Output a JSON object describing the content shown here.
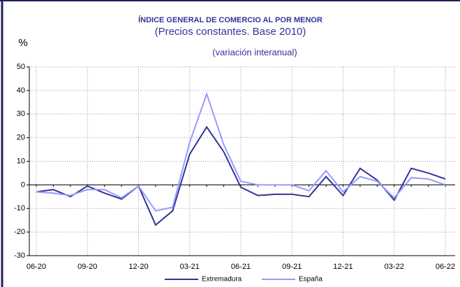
{
  "chart_data": {
    "type": "line",
    "title": "ÍNDICE GENERAL  DE COMERCIO AL POR MENOR",
    "subtitle": "(Precios constantes. Base 2010)",
    "annotation": "(variación interanual)",
    "y_label": "%",
    "categories": [
      "06-20",
      null,
      null,
      "09-20",
      null,
      null,
      "12-20",
      null,
      null,
      "03-21",
      null,
      null,
      "06-21",
      null,
      null,
      "09-21",
      null,
      null,
      "12-21",
      null,
      null,
      "03-22",
      null,
      null,
      "06-22"
    ],
    "series": [
      {
        "name": "Extremadura",
        "color": "#333399",
        "values": [
          -3,
          -2,
          -5,
          -0.5,
          -3.5,
          -6,
          -0.5,
          -17,
          -11,
          13,
          24.5,
          14,
          -1,
          -4.5,
          -4,
          -4,
          -5,
          3.5,
          -4.5,
          7,
          2,
          -6.5,
          7,
          5,
          2.5
        ]
      },
      {
        "name": "España",
        "color": "#9999ff",
        "values": [
          -3,
          -3.5,
          -4.5,
          -2,
          -2,
          -5.5,
          -0.5,
          -11,
          -9.5,
          18,
          38.5,
          17,
          1.5,
          0,
          0,
          0,
          -2.5,
          6,
          -3,
          3.5,
          1.5,
          -5.5,
          3,
          2.5,
          0
        ]
      }
    ],
    "ylim": [
      -30,
      50
    ],
    "yticks": [
      -30,
      -20,
      -10,
      0,
      10,
      20,
      30,
      40,
      50
    ],
    "grid": true
  }
}
